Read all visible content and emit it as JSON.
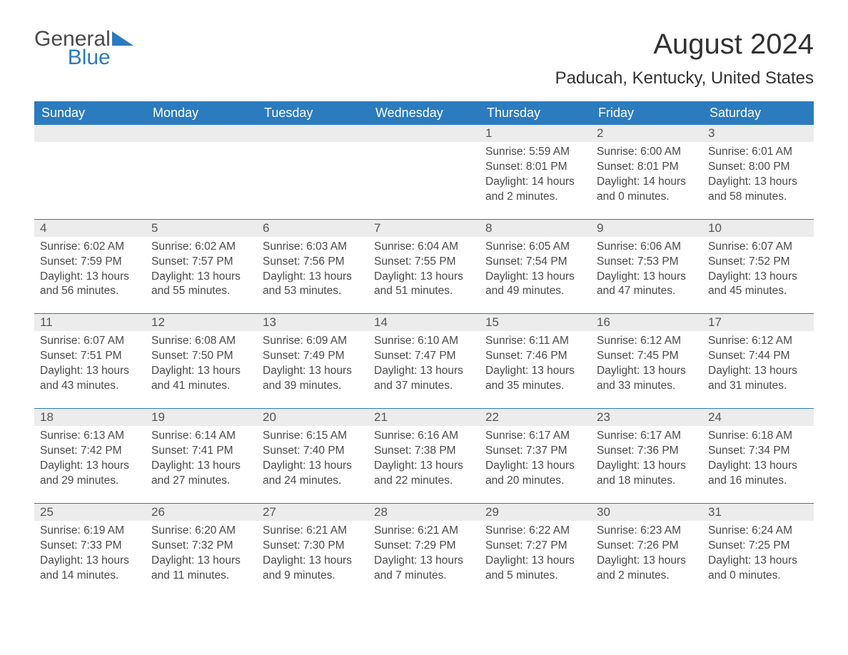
{
  "logo": {
    "general": "General",
    "blue": "Blue"
  },
  "title": "August 2024",
  "location": "Paducah, Kentucky, United States",
  "colors": {
    "header_bg": "#2b7bbf",
    "header_text": "#ffffff",
    "daynum_bg": "#ececec",
    "text": "#4a4a4a",
    "border": "#2b7bbf",
    "background": "#ffffff"
  },
  "fonts": {
    "title_size_pt": 30,
    "location_size_pt": 18,
    "weekday_size_pt": 14,
    "body_size_pt": 12
  },
  "weekdays": [
    "Sunday",
    "Monday",
    "Tuesday",
    "Wednesday",
    "Thursday",
    "Friday",
    "Saturday"
  ],
  "weeks": [
    [
      null,
      null,
      null,
      null,
      {
        "n": "1",
        "sr": "Sunrise: 5:59 AM",
        "ss": "Sunset: 8:01 PM",
        "dl": "Daylight: 14 hours and 2 minutes."
      },
      {
        "n": "2",
        "sr": "Sunrise: 6:00 AM",
        "ss": "Sunset: 8:01 PM",
        "dl": "Daylight: 14 hours and 0 minutes."
      },
      {
        "n": "3",
        "sr": "Sunrise: 6:01 AM",
        "ss": "Sunset: 8:00 PM",
        "dl": "Daylight: 13 hours and 58 minutes."
      }
    ],
    [
      {
        "n": "4",
        "sr": "Sunrise: 6:02 AM",
        "ss": "Sunset: 7:59 PM",
        "dl": "Daylight: 13 hours and 56 minutes."
      },
      {
        "n": "5",
        "sr": "Sunrise: 6:02 AM",
        "ss": "Sunset: 7:57 PM",
        "dl": "Daylight: 13 hours and 55 minutes."
      },
      {
        "n": "6",
        "sr": "Sunrise: 6:03 AM",
        "ss": "Sunset: 7:56 PM",
        "dl": "Daylight: 13 hours and 53 minutes."
      },
      {
        "n": "7",
        "sr": "Sunrise: 6:04 AM",
        "ss": "Sunset: 7:55 PM",
        "dl": "Daylight: 13 hours and 51 minutes."
      },
      {
        "n": "8",
        "sr": "Sunrise: 6:05 AM",
        "ss": "Sunset: 7:54 PM",
        "dl": "Daylight: 13 hours and 49 minutes."
      },
      {
        "n": "9",
        "sr": "Sunrise: 6:06 AM",
        "ss": "Sunset: 7:53 PM",
        "dl": "Daylight: 13 hours and 47 minutes."
      },
      {
        "n": "10",
        "sr": "Sunrise: 6:07 AM",
        "ss": "Sunset: 7:52 PM",
        "dl": "Daylight: 13 hours and 45 minutes."
      }
    ],
    [
      {
        "n": "11",
        "sr": "Sunrise: 6:07 AM",
        "ss": "Sunset: 7:51 PM",
        "dl": "Daylight: 13 hours and 43 minutes."
      },
      {
        "n": "12",
        "sr": "Sunrise: 6:08 AM",
        "ss": "Sunset: 7:50 PM",
        "dl": "Daylight: 13 hours and 41 minutes."
      },
      {
        "n": "13",
        "sr": "Sunrise: 6:09 AM",
        "ss": "Sunset: 7:49 PM",
        "dl": "Daylight: 13 hours and 39 minutes."
      },
      {
        "n": "14",
        "sr": "Sunrise: 6:10 AM",
        "ss": "Sunset: 7:47 PM",
        "dl": "Daylight: 13 hours and 37 minutes."
      },
      {
        "n": "15",
        "sr": "Sunrise: 6:11 AM",
        "ss": "Sunset: 7:46 PM",
        "dl": "Daylight: 13 hours and 35 minutes."
      },
      {
        "n": "16",
        "sr": "Sunrise: 6:12 AM",
        "ss": "Sunset: 7:45 PM",
        "dl": "Daylight: 13 hours and 33 minutes."
      },
      {
        "n": "17",
        "sr": "Sunrise: 6:12 AM",
        "ss": "Sunset: 7:44 PM",
        "dl": "Daylight: 13 hours and 31 minutes."
      }
    ],
    [
      {
        "n": "18",
        "sr": "Sunrise: 6:13 AM",
        "ss": "Sunset: 7:42 PM",
        "dl": "Daylight: 13 hours and 29 minutes."
      },
      {
        "n": "19",
        "sr": "Sunrise: 6:14 AM",
        "ss": "Sunset: 7:41 PM",
        "dl": "Daylight: 13 hours and 27 minutes."
      },
      {
        "n": "20",
        "sr": "Sunrise: 6:15 AM",
        "ss": "Sunset: 7:40 PM",
        "dl": "Daylight: 13 hours and 24 minutes."
      },
      {
        "n": "21",
        "sr": "Sunrise: 6:16 AM",
        "ss": "Sunset: 7:38 PM",
        "dl": "Daylight: 13 hours and 22 minutes."
      },
      {
        "n": "22",
        "sr": "Sunrise: 6:17 AM",
        "ss": "Sunset: 7:37 PM",
        "dl": "Daylight: 13 hours and 20 minutes."
      },
      {
        "n": "23",
        "sr": "Sunrise: 6:17 AM",
        "ss": "Sunset: 7:36 PM",
        "dl": "Daylight: 13 hours and 18 minutes."
      },
      {
        "n": "24",
        "sr": "Sunrise: 6:18 AM",
        "ss": "Sunset: 7:34 PM",
        "dl": "Daylight: 13 hours and 16 minutes."
      }
    ],
    [
      {
        "n": "25",
        "sr": "Sunrise: 6:19 AM",
        "ss": "Sunset: 7:33 PM",
        "dl": "Daylight: 13 hours and 14 minutes."
      },
      {
        "n": "26",
        "sr": "Sunrise: 6:20 AM",
        "ss": "Sunset: 7:32 PM",
        "dl": "Daylight: 13 hours and 11 minutes."
      },
      {
        "n": "27",
        "sr": "Sunrise: 6:21 AM",
        "ss": "Sunset: 7:30 PM",
        "dl": "Daylight: 13 hours and 9 minutes."
      },
      {
        "n": "28",
        "sr": "Sunrise: 6:21 AM",
        "ss": "Sunset: 7:29 PM",
        "dl": "Daylight: 13 hours and 7 minutes."
      },
      {
        "n": "29",
        "sr": "Sunrise: 6:22 AM",
        "ss": "Sunset: 7:27 PM",
        "dl": "Daylight: 13 hours and 5 minutes."
      },
      {
        "n": "30",
        "sr": "Sunrise: 6:23 AM",
        "ss": "Sunset: 7:26 PM",
        "dl": "Daylight: 13 hours and 2 minutes."
      },
      {
        "n": "31",
        "sr": "Sunrise: 6:24 AM",
        "ss": "Sunset: 7:25 PM",
        "dl": "Daylight: 13 hours and 0 minutes."
      }
    ]
  ]
}
